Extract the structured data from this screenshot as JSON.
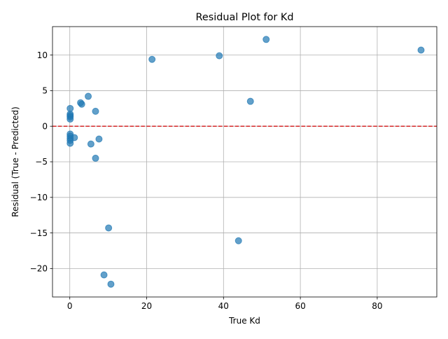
{
  "chart_data": {
    "type": "scatter",
    "title": "Residual Plot for Kd",
    "xlabel": "True Kd",
    "ylabel": "Residual (True - Predicted)",
    "xlim": [
      -4.5,
      95.5
    ],
    "ylim": [
      -24.0,
      14.0
    ],
    "xticks": [
      0,
      20,
      40,
      60,
      80
    ],
    "yticks": [
      -20,
      -15,
      -10,
      -5,
      0,
      5,
      10
    ],
    "xtick_labels": [
      "0",
      "20",
      "40",
      "60",
      "80"
    ],
    "ytick_labels": [
      "−20",
      "−15",
      "−10",
      "−5",
      "0",
      "5",
      "10"
    ],
    "grid": true,
    "legend": "none",
    "reference_line": {
      "y": 0,
      "color": "#d62728",
      "style": "dashed"
    },
    "marker_color": "#1f77b4",
    "marker_alpha": 0.7,
    "x": [
      0.1,
      0.1,
      0.1,
      0.1,
      0.1,
      0.1,
      0.1,
      0.1,
      0.1,
      0.1,
      1.2,
      2.8,
      3.1,
      4.8,
      5.5,
      6.7,
      6.7,
      7.6,
      8.9,
      10.1,
      10.7,
      21.4,
      38.9,
      43.9,
      47.0,
      51.1,
      91.4
    ],
    "y": [
      2.5,
      1.7,
      1.5,
      1.3,
      1.0,
      -1.1,
      -1.4,
      -1.7,
      -2.0,
      -2.4,
      -1.6,
      3.3,
      3.1,
      4.2,
      -2.5,
      2.1,
      -4.5,
      -1.8,
      -20.9,
      -14.3,
      -22.2,
      9.4,
      9.9,
      -16.1,
      3.5,
      12.2,
      10.7
    ]
  }
}
